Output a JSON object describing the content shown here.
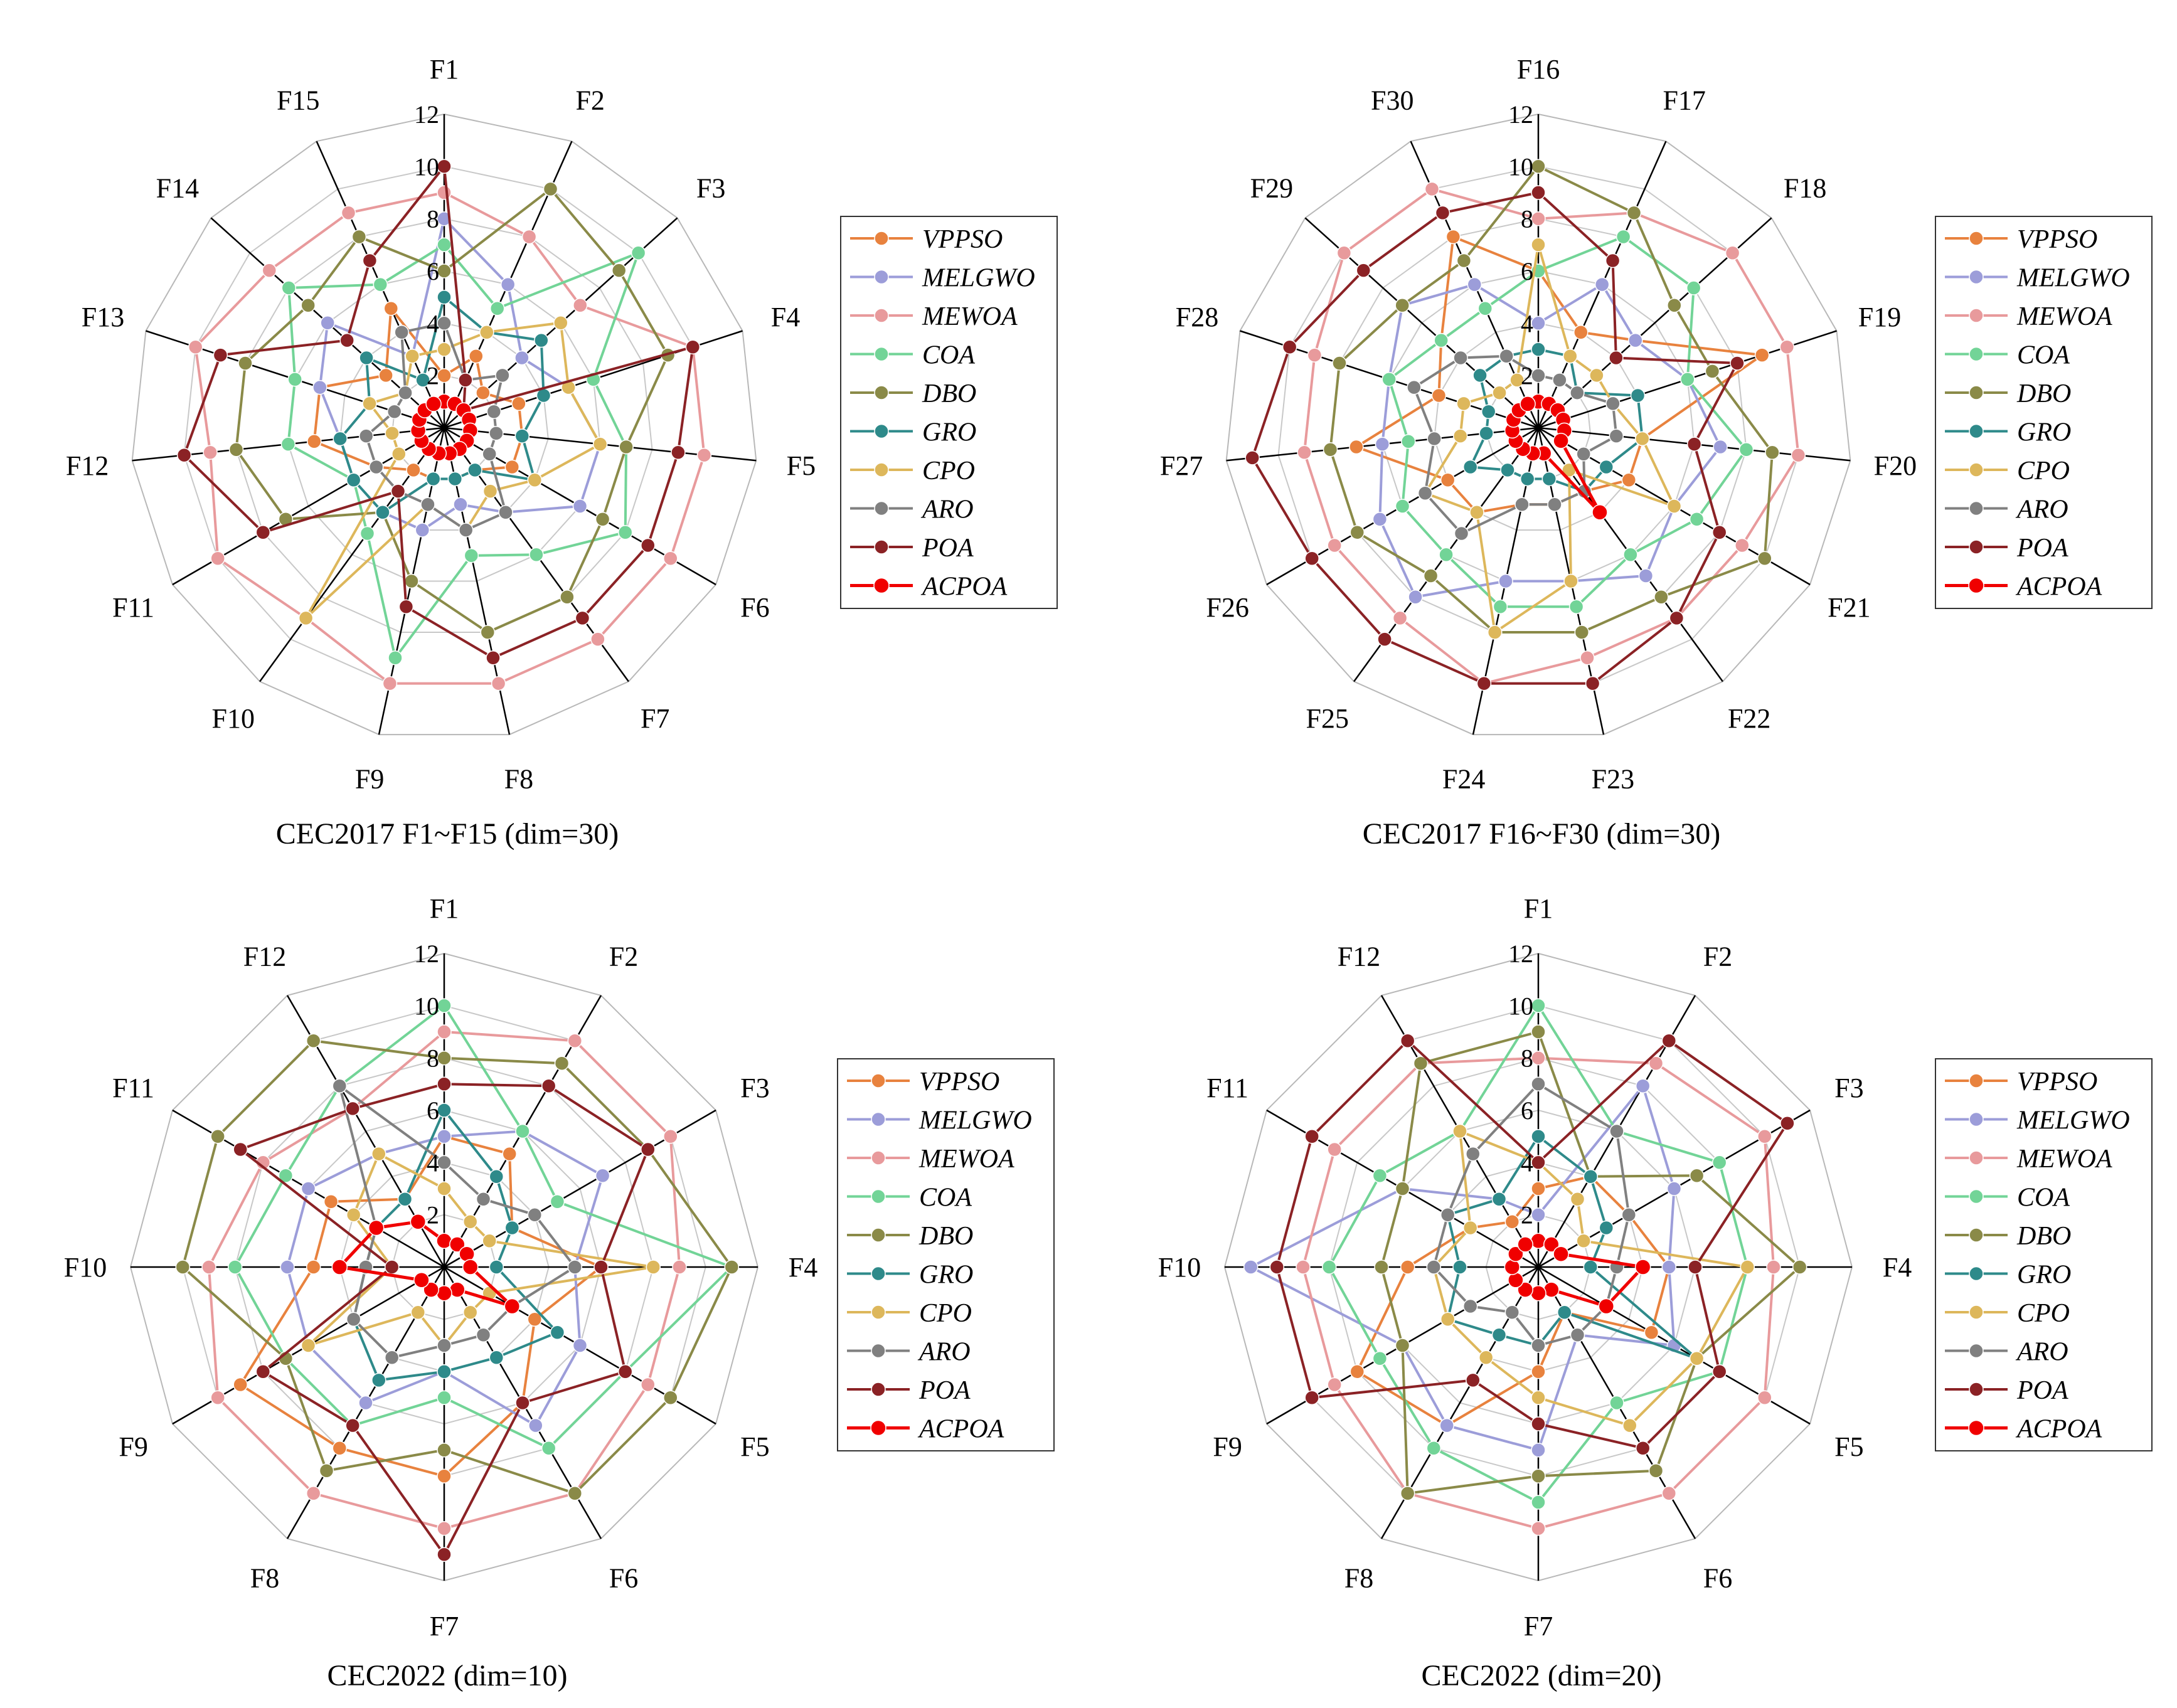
{
  "figure": {
    "colors": {
      "VPPSO": "#E8823E",
      "MELGWO": "#9C9DD9",
      "MEWOA": "#E89A9C",
      "COA": "#72D497",
      "DBO": "#8A8A48",
      "GRO": "#2E8A8A",
      "CPO": "#DDB75B",
      "ARO": "#808080",
      "POA": "#8B2225",
      "ACPOA": "#F00000"
    }
  },
  "chart_data": [
    {
      "type": "radar",
      "title": "CEC2017 F1~F15 (dim=30)",
      "axes": [
        "F1",
        "F2",
        "F3",
        "F4",
        "F5",
        "F6",
        "F7",
        "F8",
        "F9",
        "F10",
        "F11",
        "F12",
        "F13",
        "F14",
        "F15"
      ],
      "rlim": [
        0,
        12
      ],
      "ticks": [
        "2",
        "4",
        "6",
        "8",
        "10",
        "12"
      ],
      "legend": [
        "VPPSO",
        "MELGWO",
        "MEWOA",
        "COA",
        "DBO",
        "GRO",
        "CPO",
        "ARO",
        "POA",
        "ACPOA"
      ],
      "series": [
        {
          "name": "VPPSO",
          "values": [
            2,
            3,
            2,
            3,
            3,
            3,
            2,
            2,
            2,
            2,
            3,
            5,
            5,
            3,
            5
          ]
        },
        {
          "name": "MELGWO",
          "values": [
            8,
            6,
            4,
            5,
            6,
            6,
            4,
            3,
            4,
            4,
            4,
            4,
            5,
            6,
            3
          ]
        },
        {
          "name": "MEWOA",
          "values": [
            9,
            8,
            7,
            10,
            10,
            10,
            10,
            10,
            10,
            9,
            10,
            9,
            10,
            9,
            9
          ]
        },
        {
          "name": "COA",
          "values": [
            7,
            5,
            10,
            6,
            7,
            8,
            6,
            5,
            9,
            5,
            4,
            6,
            6,
            8,
            6
          ]
        },
        {
          "name": "DBO",
          "values": [
            6,
            10,
            9,
            9,
            7,
            7,
            8,
            8,
            6,
            4,
            7,
            8,
            8,
            7,
            8
          ]
        },
        {
          "name": "GRO",
          "values": [
            5,
            4,
            5,
            4,
            3,
            4,
            2,
            2,
            2,
            4,
            4,
            4,
            3,
            4,
            2
          ]
        },
        {
          "name": "CPO",
          "values": [
            3,
            4,
            6,
            5,
            6,
            4,
            3,
            4,
            3,
            9,
            2,
            2,
            3,
            2,
            3
          ]
        },
        {
          "name": "ARO",
          "values": [
            4,
            2,
            3,
            2,
            2,
            2,
            4,
            4,
            3,
            3,
            3,
            3,
            2,
            2,
            4
          ]
        },
        {
          "name": "POA",
          "values": [
            10,
            2,
            1,
            10,
            9,
            9,
            9,
            9,
            7,
            3,
            8,
            10,
            9,
            5,
            7
          ]
        },
        {
          "name": "ACPOA",
          "values": [
            1,
            1,
            1,
            1,
            1,
            1,
            1,
            1,
            1,
            1,
            1,
            1,
            1,
            1,
            1
          ]
        }
      ]
    },
    {
      "type": "radar",
      "title": "CEC2017 F16~F30 (dim=30)",
      "axes": [
        "F16",
        "F17",
        "F18",
        "F19",
        "F20",
        "F21",
        "F22",
        "F23",
        "F24",
        "F25",
        "F26",
        "F27",
        "F28",
        "F29",
        "F30"
      ],
      "rlim": [
        0,
        12
      ],
      "ticks": [
        "2",
        "4",
        "6",
        "8",
        "10",
        "12"
      ],
      "legend": [
        "VPPSO",
        "MELGWO",
        "MEWOA",
        "COA",
        "DBO",
        "GRO",
        "CPO",
        "ARO",
        "POA",
        "ACPOA"
      ],
      "series": [
        {
          "name": "VPPSO",
          "values": [
            6,
            4,
            5,
            9,
            4,
            4,
            3,
            3,
            3,
            4,
            4,
            7,
            4,
            5,
            8
          ]
        },
        {
          "name": "MELGWO",
          "values": [
            4,
            6,
            5,
            6,
            7,
            6,
            7,
            6,
            6,
            8,
            7,
            6,
            6,
            7,
            6
          ]
        },
        {
          "name": "MEWOA",
          "values": [
            8,
            9,
            10,
            10,
            10,
            9,
            9,
            9,
            10,
            9,
            9,
            9,
            9,
            10,
            10
          ]
        },
        {
          "name": "COA",
          "values": [
            6,
            8,
            8,
            6,
            8,
            7,
            6,
            7,
            7,
            6,
            6,
            5,
            6,
            5,
            5
          ]
        },
        {
          "name": "DBO",
          "values": [
            10,
            9,
            7,
            7,
            9,
            10,
            8,
            8,
            8,
            7,
            8,
            8,
            8,
            7,
            7
          ]
        },
        {
          "name": "GRO",
          "values": [
            3,
            3,
            2,
            4,
            4,
            3,
            3,
            2,
            2,
            2,
            3,
            2,
            2,
            3,
            3
          ]
        },
        {
          "name": "CPO",
          "values": [
            7,
            3,
            3,
            3,
            4,
            6,
            2,
            6,
            8,
            4,
            5,
            3,
            3,
            2,
            2
          ]
        },
        {
          "name": "ARO",
          "values": [
            2,
            2,
            2,
            3,
            3,
            2,
            3,
            3,
            3,
            5,
            5,
            4,
            5,
            4,
            3
          ]
        },
        {
          "name": "POA",
          "values": [
            9,
            7,
            4,
            8,
            6,
            8,
            9,
            10,
            10,
            10,
            10,
            11,
            10,
            9,
            9
          ]
        },
        {
          "name": "ACPOA",
          "values": [
            1,
            1,
            1,
            1,
            1,
            1,
            4,
            1,
            1,
            1,
            1,
            1,
            1,
            1,
            1
          ]
        }
      ]
    },
    {
      "type": "radar",
      "title": "CEC2022 (dim=10)",
      "axes": [
        "F1",
        "F2",
        "F3",
        "F4",
        "F5",
        "F6",
        "F7",
        "F8",
        "F9",
        "F10",
        "F11",
        "F12"
      ],
      "rlim": [
        0,
        12
      ],
      "ticks": [
        "2",
        "4",
        "6",
        "8",
        "10",
        "12"
      ],
      "legend": [
        "VPPSO",
        "MELGWO",
        "MEWOA",
        "COA",
        "DBO",
        "GRO",
        "CPO",
        "ARO",
        "POA",
        "ACPOA"
      ],
      "series": [
        {
          "name": "VPPSO",
          "values": [
            5,
            5,
            3,
            6,
            4,
            6,
            8,
            8,
            9,
            5,
            5,
            3
          ]
        },
        {
          "name": "MELGWO",
          "values": [
            5,
            6,
            7,
            5,
            6,
            7,
            4,
            6,
            6,
            6,
            6,
            5
          ]
        },
        {
          "name": "MEWOA",
          "values": [
            9,
            10,
            10,
            9,
            9,
            10,
            10,
            10,
            10,
            9,
            8,
            7
          ]
        },
        {
          "name": "COA",
          "values": [
            10,
            6,
            5,
            11,
            8,
            8,
            5,
            7,
            7,
            8,
            7,
            8
          ]
        },
        {
          "name": "DBO",
          "values": [
            8,
            9,
            9,
            11,
            10,
            10,
            7,
            9,
            7,
            10,
            10,
            10
          ]
        },
        {
          "name": "GRO",
          "values": [
            6,
            4,
            3,
            2,
            5,
            4,
            4,
            5,
            4,
            3,
            3,
            3
          ]
        },
        {
          "name": "CPO",
          "values": [
            3,
            2,
            2,
            8,
            2,
            2,
            3,
            2,
            6,
            2,
            4,
            5
          ]
        },
        {
          "name": "ARO",
          "values": [
            4,
            3,
            4,
            5,
            3,
            3,
            3,
            4,
            4,
            3,
            3,
            8
          ]
        },
        {
          "name": "POA",
          "values": [
            7,
            8,
            9,
            6,
            8,
            6,
            11,
            7,
            8,
            2,
            9,
            7
          ]
        },
        {
          "name": "ACPOA",
          "values": [
            1,
            1,
            1,
            1,
            3,
            1,
            1,
            1,
            1,
            4,
            3,
            2
          ]
        }
      ]
    },
    {
      "type": "radar",
      "title": "CEC2022 (dim=20)",
      "axes": [
        "F1",
        "F2",
        "F3",
        "F4",
        "F5",
        "F6",
        "F7",
        "F8",
        "F9",
        "F10",
        "F11",
        "F12"
      ],
      "rlim": [
        0,
        12
      ],
      "ticks": [
        "2",
        "4",
        "6",
        "8",
        "10",
        "12"
      ],
      "legend": [
        "VPPSO",
        "MELGWO",
        "MEWOA",
        "COA",
        "DBO",
        "GRO",
        "CPO",
        "ARO",
        "POA",
        "ACPOA"
      ],
      "series": [
        {
          "name": "VPPSO",
          "values": [
            3,
            4,
            4,
            5,
            5,
            2,
            4,
            7,
            8,
            5,
            3,
            2
          ]
        },
        {
          "name": "MELGWO",
          "values": [
            2,
            8,
            6,
            5,
            6,
            3,
            7,
            7,
            6,
            11,
            6,
            3
          ]
        },
        {
          "name": "MEWOA",
          "values": [
            8,
            9,
            10,
            9,
            10,
            10,
            10,
            10,
            9,
            9,
            9,
            9
          ]
        },
        {
          "name": "COA",
          "values": [
            10,
            6,
            8,
            8,
            8,
            6,
            9,
            8,
            7,
            8,
            7,
            6
          ]
        },
        {
          "name": "DBO",
          "values": [
            9,
            4,
            7,
            10,
            7,
            9,
            8,
            10,
            6,
            6,
            6,
            9
          ]
        },
        {
          "name": "GRO",
          "values": [
            5,
            4,
            3,
            2,
            7,
            2,
            3,
            3,
            4,
            3,
            4,
            3
          ]
        },
        {
          "name": "CPO",
          "values": [
            4,
            3,
            2,
            8,
            7,
            7,
            5,
            4,
            4,
            4,
            3,
            6
          ]
        },
        {
          "name": "ARO",
          "values": [
            7,
            6,
            4,
            3,
            3,
            3,
            3,
            2,
            3,
            4,
            4,
            5
          ]
        },
        {
          "name": "POA",
          "values": [
            4,
            10,
            11,
            6,
            8,
            8,
            6,
            5,
            10,
            10,
            10,
            10
          ]
        },
        {
          "name": "ACPOA",
          "values": [
            1,
            1,
            1,
            4,
            3,
            1,
            1,
            1,
            1,
            1,
            1,
            1
          ]
        }
      ]
    }
  ]
}
